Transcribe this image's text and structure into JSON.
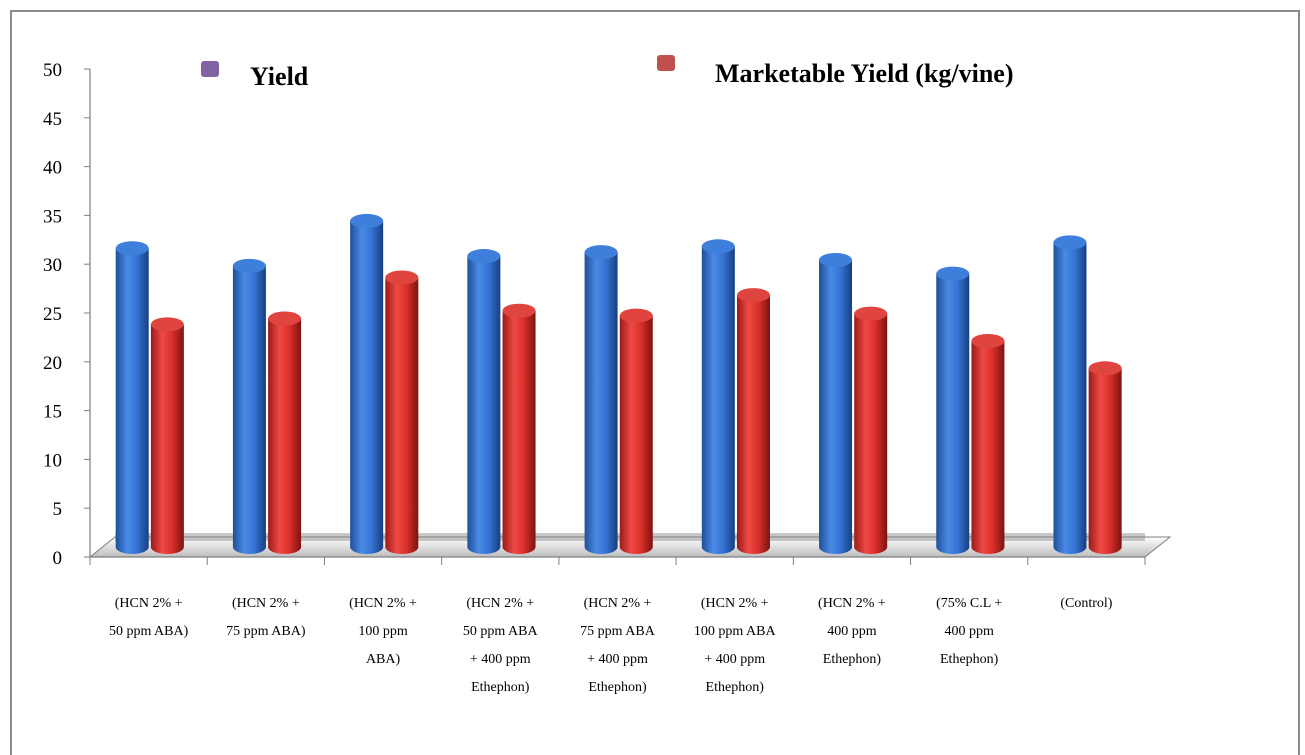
{
  "chart_data": {
    "type": "bar",
    "categories": [
      [
        "(HCN 2% +",
        "50 ppm ABA)"
      ],
      [
        "(HCN 2% +",
        "75 ppm ABA)"
      ],
      [
        "(HCN 2% +",
        "100 ppm",
        "ABA)"
      ],
      [
        "(HCN 2% +",
        "50 ppm ABA",
        "+ 400 ppm",
        "Ethephon)"
      ],
      [
        "(HCN 2% +",
        "75 ppm ABA",
        "+ 400 ppm",
        "Ethephon)"
      ],
      [
        "(HCN 2% +",
        "100 ppm ABA",
        "+ 400 ppm",
        "Ethephon)"
      ],
      [
        "(HCN 2% +",
        "400 ppm",
        "Ethephon)"
      ],
      [
        "(75% C.L +",
        "400 ppm",
        "Ethephon)"
      ],
      [
        "(Control)"
      ]
    ],
    "series": [
      {
        "name": "Yield",
        "legend_color": "#8064a2",
        "color": "#2f6cc4",
        "values": [
          30.2,
          28.4,
          33.0,
          29.4,
          29.8,
          30.4,
          29.0,
          27.6,
          30.8
        ]
      },
      {
        "name": "Marketable Yield (kg/vine)",
        "legend_color": "#c0504d",
        "color": "#d32a26",
        "values": [
          22.4,
          23.0,
          27.2,
          23.8,
          23.3,
          25.4,
          23.5,
          20.7,
          17.9
        ]
      }
    ],
    "y_ticks": [
      "0",
      "5",
      "10",
      "15",
      "20",
      "25",
      "30",
      "35",
      "40",
      "45",
      "50"
    ],
    "ylim": [
      0,
      50
    ],
    "grid": false,
    "legend_position": "top"
  }
}
